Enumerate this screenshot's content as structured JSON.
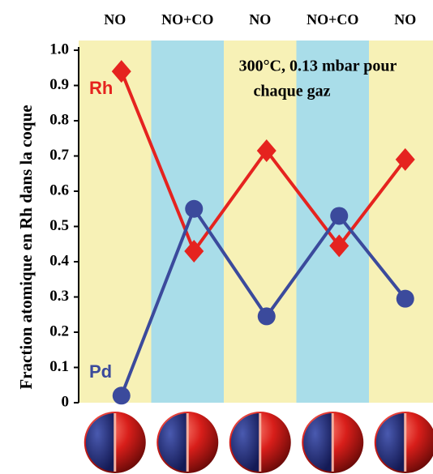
{
  "chart_data": {
    "type": "line",
    "ylabel": "Fraction atomique en Rh dans la coque",
    "annotation": [
      "300°C, 0.13 mbar pour",
      "chaque gaz"
    ],
    "categories": [
      "NO",
      "NO+CO",
      "NO",
      "NO+CO",
      "NO"
    ],
    "series": [
      {
        "name": "Rh",
        "color": "#e5231f",
        "marker": "diamond",
        "values": [
          0.94,
          0.43,
          0.715,
          0.445,
          0.69
        ]
      },
      {
        "name": "Pd",
        "color": "#3b4a9c",
        "marker": "circle",
        "values": [
          0.02,
          0.55,
          0.245,
          0.53,
          0.295
        ]
      }
    ],
    "ylim": [
      0,
      1
    ],
    "yticks": [
      0,
      0.1,
      0.2,
      0.3,
      0.4,
      0.5,
      0.6,
      0.7,
      0.8,
      0.9,
      {
        "value": 1,
        "label": "1.0"
      }
    ]
  }
}
